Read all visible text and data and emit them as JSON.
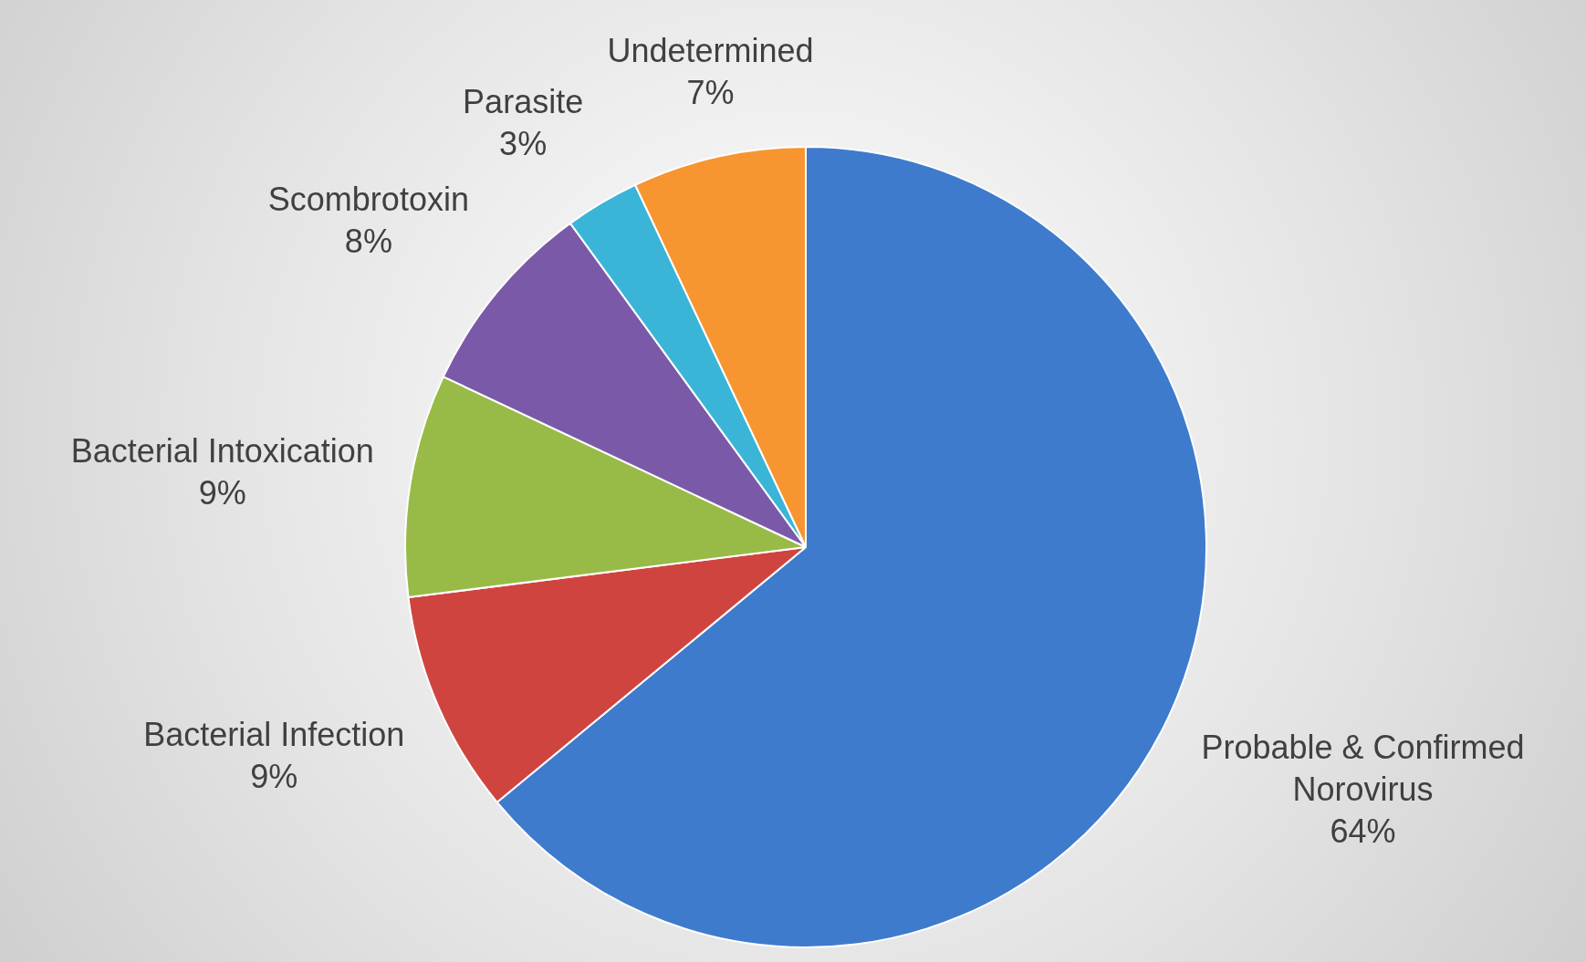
{
  "chart_data": {
    "type": "pie",
    "categories": [
      "Probable & Confirmed Norovirus",
      "Bacterial Infection",
      "Bacterial Intoxication",
      "Scombrotoxin",
      "Parasite",
      "Undetermined"
    ],
    "values": [
      64,
      9,
      9,
      8,
      3,
      7
    ],
    "value_labels": [
      "64%",
      "9%",
      "9%",
      "8%",
      "3%",
      "7%"
    ],
    "colors": [
      "#3f7bcc",
      "#d04440",
      "#98bb48",
      "#7a5aa8",
      "#3ab5d8",
      "#f79530"
    ],
    "data_labels": true,
    "legend": false
  }
}
